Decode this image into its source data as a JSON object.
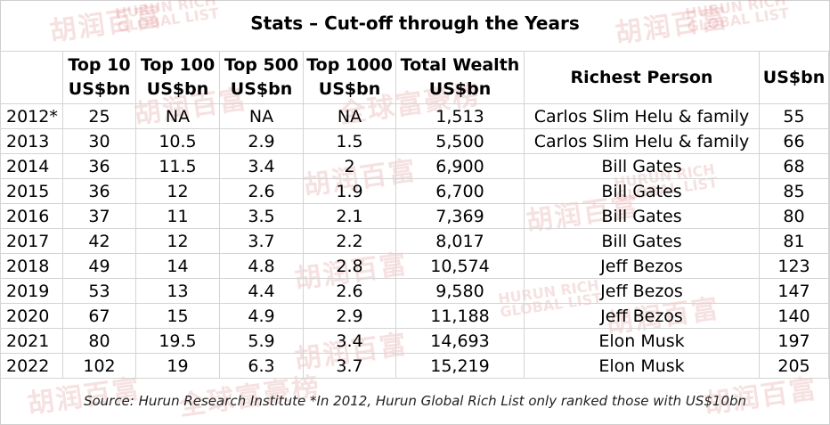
{
  "title": "Stats – Cut-off through the Years",
  "headers": [
    "",
    "Top 10 US$bn",
    "Top 100 US$bn",
    "Top 500 US$bn",
    "Top 1000 US$bn",
    "Total Wealth US$bn",
    "Richest Person",
    "US$bn"
  ],
  "rows": [
    [
      "2012*",
      "25",
      "NA",
      "NA",
      "NA",
      "1,513",
      "Carlos Slim Helu & family",
      "55"
    ],
    [
      "2013",
      "30",
      "10.5",
      "2.9",
      "1.5",
      "5,500",
      "Carlos Slim Helu & family",
      "66"
    ],
    [
      "2014",
      "36",
      "11.5",
      "3.4",
      "2",
      "6,900",
      "Bill Gates",
      "68"
    ],
    [
      "2015",
      "36",
      "12",
      "2.6",
      "1.9",
      "6,700",
      "Bill Gates",
      "85"
    ],
    [
      "2016",
      "37",
      "11",
      "3.5",
      "2.1",
      "7,369",
      "Bill Gates",
      "80"
    ],
    [
      "2017",
      "42",
      "12",
      "3.7",
      "2.2",
      "8,017",
      "Bill Gates",
      "81"
    ],
    [
      "2018",
      "49",
      "14",
      "4.8",
      "2.8",
      "10,574",
      "Jeff Bezos",
      "123"
    ],
    [
      "2019",
      "53",
      "13",
      "4.4",
      "2.6",
      "9,580",
      "Jeff Bezos",
      "147"
    ],
    [
      "2020",
      "67",
      "15",
      "4.9",
      "2.9",
      "11,188",
      "Jeff Bezos",
      "140"
    ],
    [
      "2021",
      "80",
      "19.5",
      "5.9",
      "3.4",
      "14,693",
      "Elon Musk",
      "197"
    ],
    [
      "2022",
      "102",
      "19",
      "6.3",
      "3.7",
      "15,219",
      "Elon Musk",
      "205"
    ]
  ],
  "source": "Source: Hurun Research Institute *In 2012, Hurun Global Rich List only ranked those with US$10bn",
  "watermark": {
    "cn": "胡润百富",
    "en_line1": "HURUN RICH",
    "en_line2": "GLOBAL LIST"
  }
}
